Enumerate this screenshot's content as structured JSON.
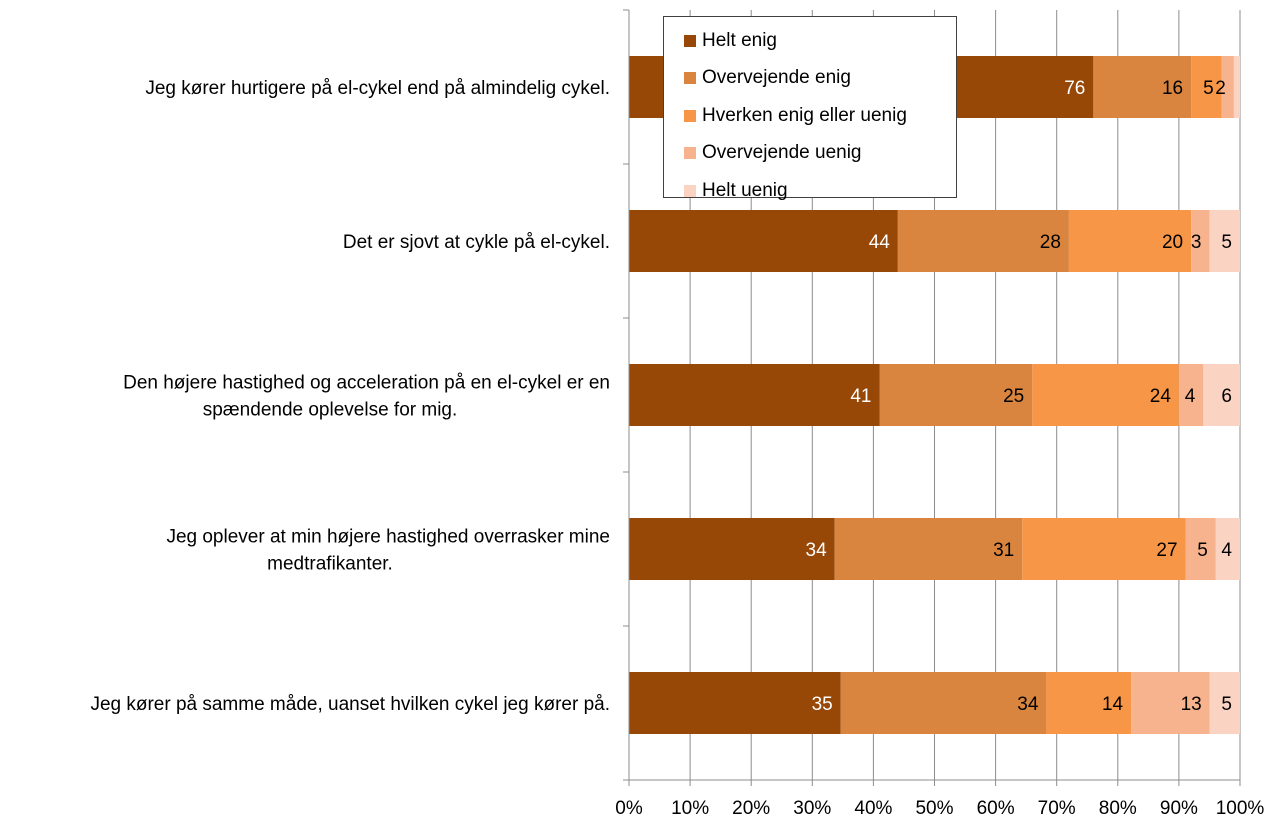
{
  "chart_data": {
    "type": "bar",
    "orientation": "horizontal",
    "stacked": "percent",
    "categories": [
      [
        "Jeg kører hurtigere på el-cykel end på almindelig cykel."
      ],
      [
        "Det er sjovt at cykle på el-cykel."
      ],
      [
        "Den højere hastighed og acceleration på en el-cykel er en",
        "spændende oplevelse for mig."
      ],
      [
        "Jeg oplever at min højere hastighed overrasker mine",
        "medtrafikanter."
      ],
      [
        "Jeg kører på samme måde, uanset hvilken cykel jeg kører på."
      ]
    ],
    "series": [
      {
        "name": "Helt enig",
        "color": "#974706",
        "label_color": "#ffffff",
        "values": [
          76,
          44,
          41,
          34,
          35
        ]
      },
      {
        "name": "Overvejende enig",
        "color": "#d9853f",
        "label_color": "#000000",
        "values": [
          16,
          28,
          25,
          31,
          34
        ]
      },
      {
        "name": "Hverken enig eller uenig",
        "color": "#f79646",
        "label_color": "#000000",
        "values": [
          5,
          20,
          24,
          27,
          14
        ]
      },
      {
        "name": "Overvejende uenig",
        "color": "#f7b38d",
        "label_color": "#000000",
        "values": [
          2,
          3,
          4,
          5,
          13
        ]
      },
      {
        "name": "Helt uenig",
        "color": "#fbd3c2",
        "label_color": "#000000",
        "values": [
          1,
          5,
          6,
          4,
          5
        ]
      }
    ],
    "data_labels": [
      [
        "76",
        "44",
        "41",
        "34",
        "35"
      ],
      [
        "16",
        "28",
        "25",
        "31",
        "34"
      ],
      [
        "5",
        "20",
        "24",
        "27",
        "14"
      ],
      [
        "2",
        "3",
        "4",
        "5",
        "13"
      ],
      [
        "",
        "5",
        "6",
        "4",
        "5"
      ]
    ],
    "x_ticks": [
      "0%",
      "10%",
      "20%",
      "30%",
      "40%",
      "50%",
      "60%",
      "70%",
      "80%",
      "90%",
      "100%"
    ],
    "xlim": [
      0,
      100
    ],
    "xlabel": "",
    "ylabel": "",
    "title": "",
    "grid": true,
    "legend_position": "top-center"
  }
}
